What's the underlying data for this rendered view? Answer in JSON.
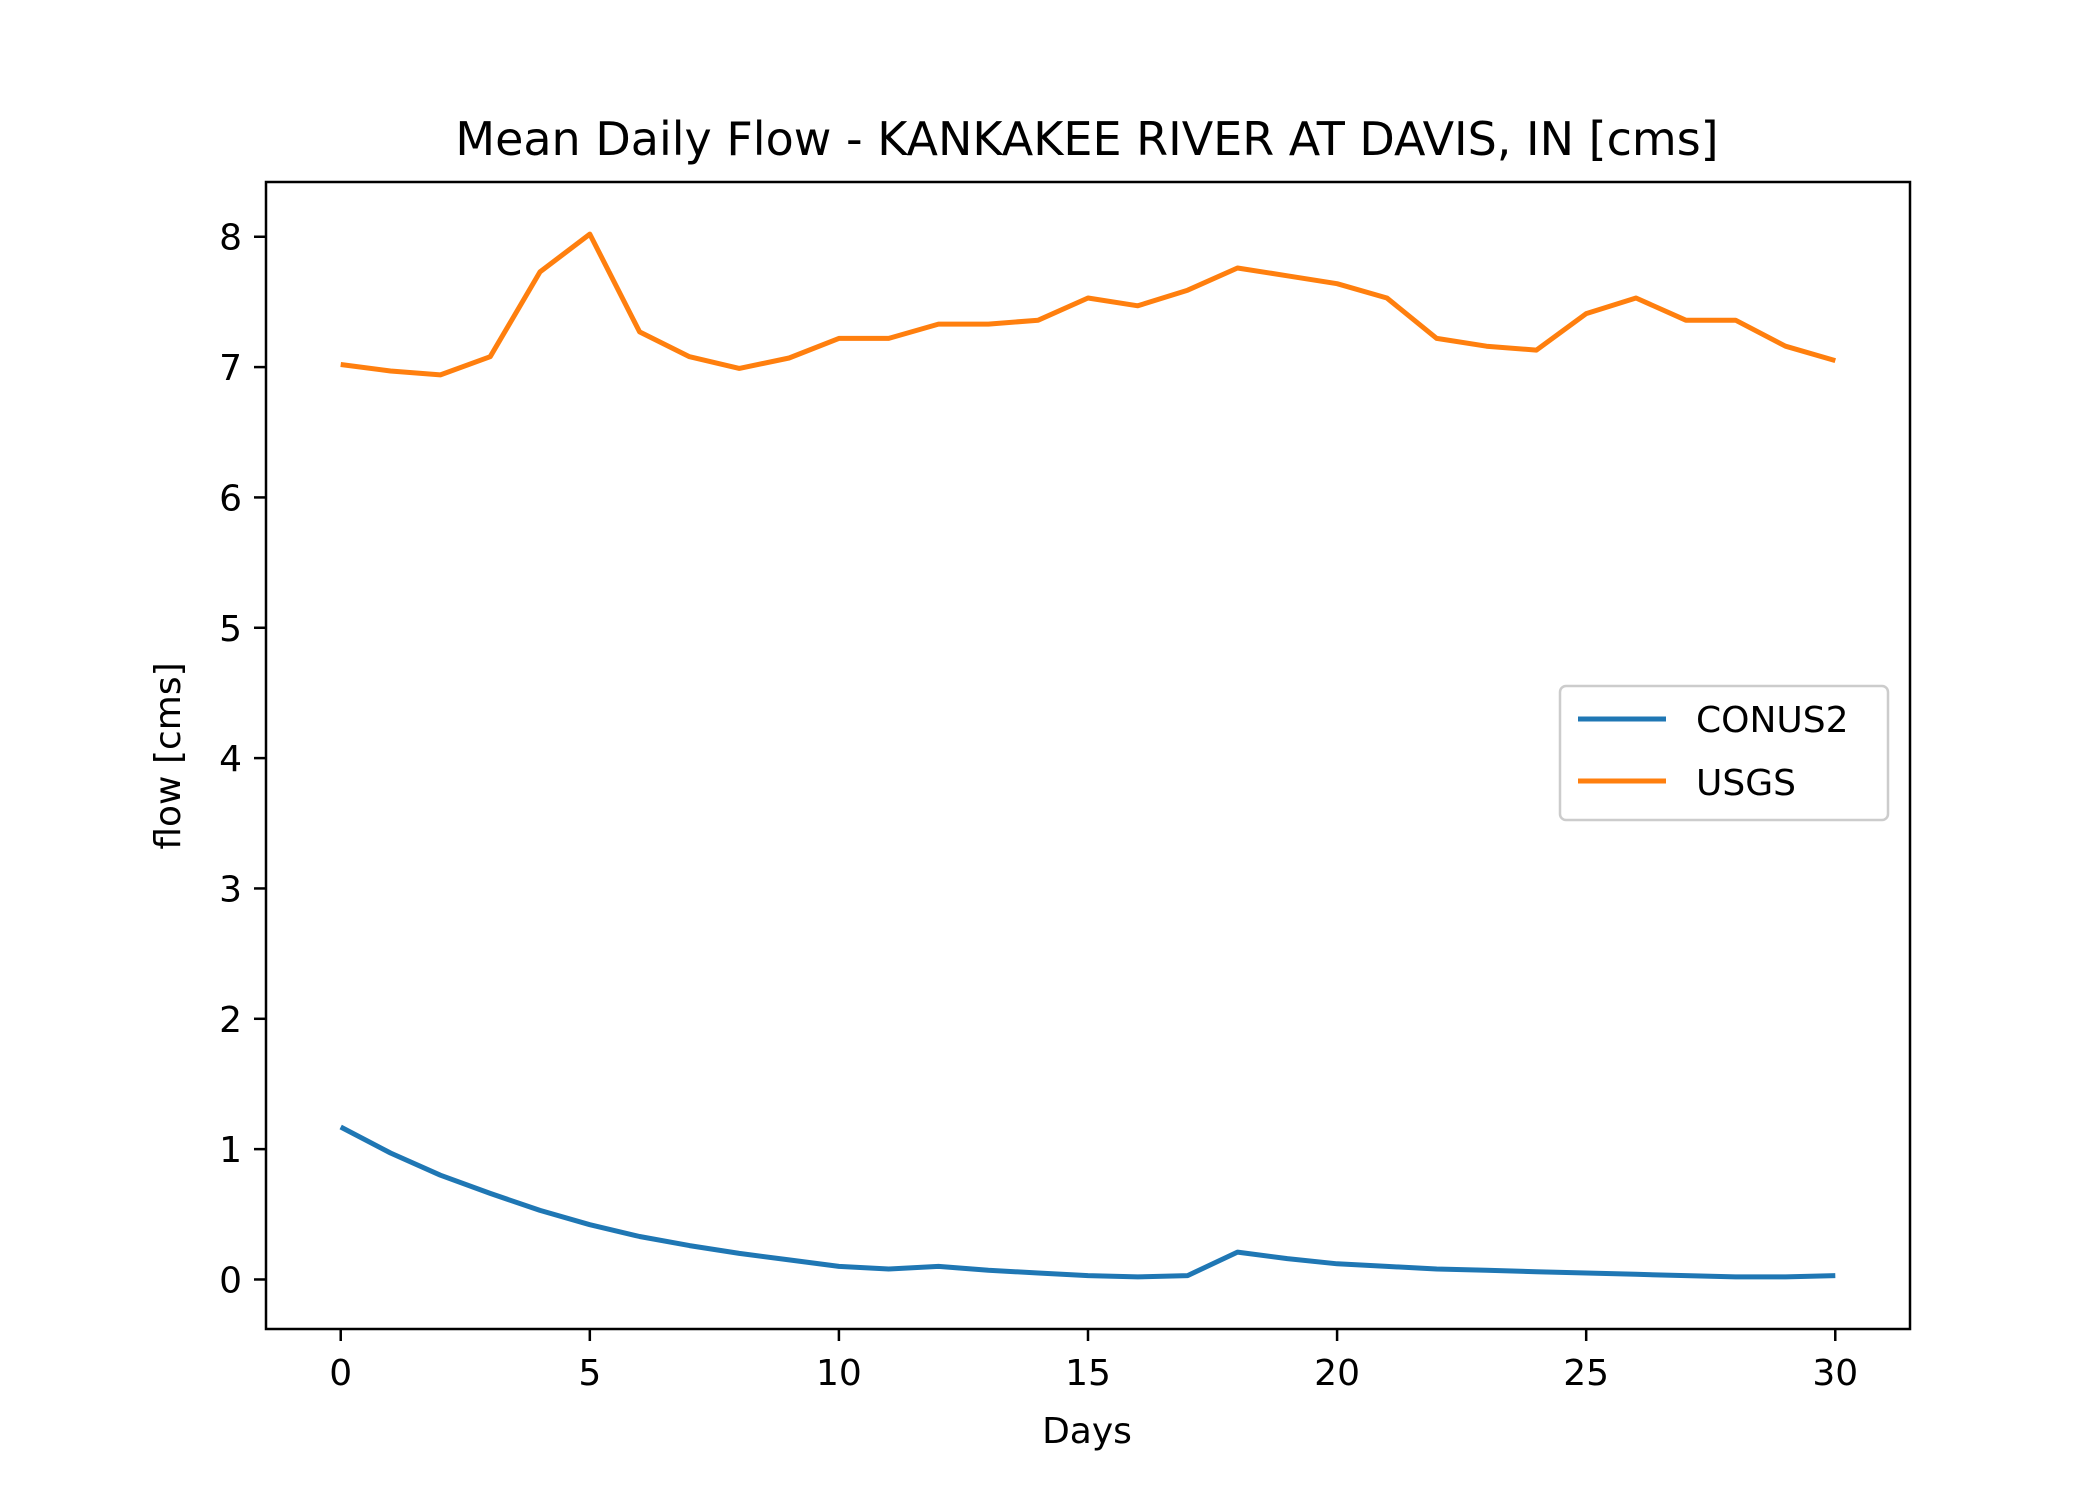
{
  "chart_data": {
    "type": "line",
    "title": "Mean Daily Flow - KANKAKEE RIVER AT DAVIS, IN [cms]",
    "xlabel": "Days",
    "ylabel": "flow [cms]",
    "xlim": [
      -1.5,
      31.5
    ],
    "ylim": [
      -0.38,
      8.42
    ],
    "xticks": [
      0,
      5,
      10,
      15,
      20,
      25,
      30
    ],
    "yticks": [
      0,
      1,
      2,
      3,
      4,
      5,
      6,
      7,
      8
    ],
    "grid": false,
    "legend_position": "center-right",
    "x": [
      0,
      1,
      2,
      3,
      4,
      5,
      6,
      7,
      8,
      9,
      10,
      11,
      12,
      13,
      14,
      15,
      16,
      17,
      18,
      19,
      20,
      21,
      22,
      23,
      24,
      25,
      26,
      27,
      28,
      29,
      30
    ],
    "series": [
      {
        "name": "CONUS2",
        "color": "#1f77b4",
        "values": [
          1.17,
          0.97,
          0.8,
          0.66,
          0.53,
          0.42,
          0.33,
          0.26,
          0.2,
          0.15,
          0.1,
          0.08,
          0.1,
          0.07,
          0.05,
          0.03,
          0.02,
          0.03,
          0.21,
          0.16,
          0.12,
          0.1,
          0.08,
          0.07,
          0.06,
          0.05,
          0.04,
          0.03,
          0.02,
          0.02,
          0.03
        ]
      },
      {
        "name": "USGS",
        "color": "#ff7f0e",
        "values": [
          7.02,
          6.97,
          6.94,
          7.08,
          7.73,
          8.02,
          7.27,
          7.08,
          6.99,
          7.07,
          7.22,
          7.22,
          7.33,
          7.33,
          7.36,
          7.53,
          7.47,
          7.59,
          7.76,
          7.7,
          7.64,
          7.53,
          7.22,
          7.16,
          7.13,
          7.41,
          7.53,
          7.36,
          7.36,
          7.16,
          7.05
        ]
      }
    ]
  }
}
